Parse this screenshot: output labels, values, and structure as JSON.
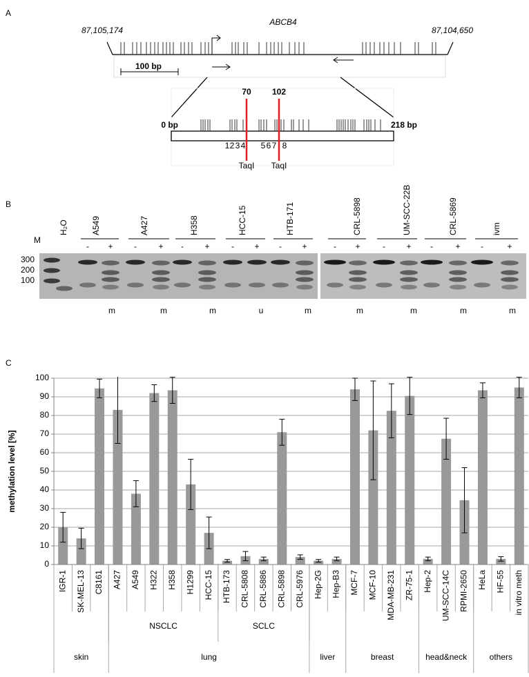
{
  "panel_a": {
    "label": "A",
    "gene": "ABCB4",
    "coord_left": "87,105,174",
    "coord_right": "87,104,650",
    "scale_bar": "100 bp",
    "start": "0 bp",
    "end": "218 bp",
    "sites": [
      {
        "position": 70,
        "enzyme": "TaqI"
      },
      {
        "position": 102,
        "enzyme": "TaqI"
      }
    ],
    "cpg_labels": [
      1,
      2,
      3,
      4,
      5,
      6,
      7,
      8
    ]
  },
  "panel_b": {
    "label": "B",
    "marker": "M",
    "ladder": [
      300,
      200,
      100
    ],
    "blank": "H₂O",
    "samples": [
      {
        "name": "A549",
        "digest": [
          "-",
          "+"
        ],
        "status": "m"
      },
      {
        "name": "A427",
        "digest": [
          "-",
          "+"
        ],
        "status": "m"
      },
      {
        "name": "H358",
        "digest": [
          "-",
          "+"
        ],
        "status": "m"
      },
      {
        "name": "HCC-15",
        "digest": [
          "-",
          "+"
        ],
        "status": "u"
      },
      {
        "name": "HTB-171",
        "digest": [
          "-",
          "+"
        ],
        "status": "m"
      },
      {
        "name": "CRL-5898",
        "digest": [
          "-",
          "+"
        ],
        "status": "m"
      },
      {
        "name": "UM-SCC-22B",
        "digest": [
          "-",
          "+"
        ],
        "status": "m"
      },
      {
        "name": "CRL-5869",
        "digest": [
          "-",
          "+"
        ],
        "status": "m"
      },
      {
        "name": "ivm",
        "digest": [
          "-",
          "+"
        ],
        "status": "m"
      }
    ]
  },
  "chart_data": {
    "type": "bar",
    "label": "C",
    "y_label": "methylation level [%]",
    "categories": [
      "IGR-1",
      "SK-MEL-13",
      "C8161",
      "A427",
      "A549",
      "H322",
      "H358",
      "H1299",
      "HCC-15",
      "HTB-173",
      "CRL-5808",
      "CRL-5886",
      "CRL-5898",
      "CRL-5976",
      "Hep-2G",
      "Hep-B3",
      "MCF-7",
      "MCF-10",
      "MDA-MB-231",
      "ZR-75-1",
      "Hep-2",
      "UM-SCC-14C",
      "RPMI-2650",
      "HeLa",
      "HF-55",
      "in vitro meth"
    ],
    "values": [
      20,
      14,
      94.5,
      83,
      38,
      92,
      93.5,
      43,
      17,
      2,
      4.5,
      3,
      71,
      4,
      2,
      3,
      94,
      72,
      82.5,
      90.5,
      3,
      67.5,
      34.5,
      93.5,
      3,
      95
    ],
    "errors": [
      8,
      5.5,
      5,
      18,
      7,
      4.5,
      7,
      13.5,
      8.5,
      0.7,
      2.5,
      1,
      7,
      1.2,
      0.7,
      1,
      6,
      26.5,
      14.5,
      10,
      1,
      11,
      17.5,
      4,
      1.2,
      5.5
    ],
    "subgroups": [
      {
        "label": null,
        "span": 3
      },
      {
        "label": "NSCLC",
        "span": 6
      },
      {
        "label": "SCLC",
        "span": 5
      },
      {
        "label": null,
        "span": 12
      }
    ],
    "groups": [
      {
        "label": "skin",
        "span": 3
      },
      {
        "label": "lung",
        "span": 11
      },
      {
        "label": "liver",
        "span": 2
      },
      {
        "label": "breast",
        "span": 4
      },
      {
        "label": "head&neck",
        "span": 3
      },
      {
        "label": "others",
        "span": 3
      }
    ],
    "ylim": [
      0,
      100
    ],
    "yticks": [
      0,
      10,
      20,
      30,
      40,
      50,
      60,
      70,
      80,
      90,
      100
    ],
    "grid": true,
    "color": "#999999"
  }
}
